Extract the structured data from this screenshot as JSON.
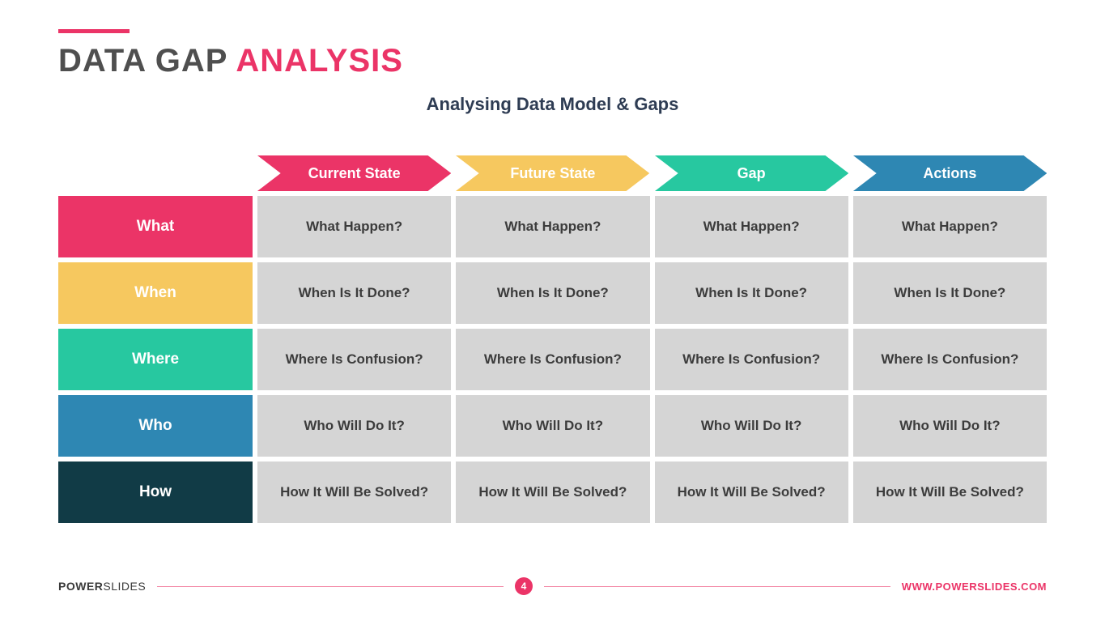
{
  "colors": {
    "accent_pink": "#eb3467",
    "title_gray": "#4f4f4f",
    "subtitle_navy": "#2e3c53",
    "cell_bg": "#d5d5d5",
    "cell_text": "#3c3c3c",
    "footer_dark": "#3a3a3a"
  },
  "title": {
    "part1": "DATA GAP ",
    "part2": "ANALYSIS"
  },
  "subtitle": "Analysing Data Model & Gaps",
  "columns": [
    {
      "label": "Current State",
      "color": "#eb3467"
    },
    {
      "label": "Future State",
      "color": "#f6c85f"
    },
    {
      "label": "Gap",
      "color": "#27c8a0"
    },
    {
      "label": "Actions",
      "color": "#2e87b3"
    }
  ],
  "rows": [
    {
      "label": "What",
      "color": "#eb3467",
      "cells": [
        "What Happen?",
        "What Happen?",
        "What Happen?",
        "What Happen?"
      ]
    },
    {
      "label": "When",
      "color": "#f6c85f",
      "cells": [
        "When Is It Done?",
        "When Is It Done?",
        "When Is It Done?",
        "When Is It Done?"
      ]
    },
    {
      "label": "Where",
      "color": "#27c8a0",
      "cells": [
        "Where Is Confusion?",
        "Where Is Confusion?",
        "Where Is Confusion?",
        "Where Is Confusion?"
      ]
    },
    {
      "label": "Who",
      "color": "#2e87b3",
      "cells": [
        "Who Will Do It?",
        "Who Will Do It?",
        "Who Will Do It?",
        "Who Will Do It?"
      ]
    },
    {
      "label": "How",
      "color": "#113b46",
      "cells": [
        "How It Will Be Solved?",
        "How It Will Be Solved?",
        "How It Will Be Solved?",
        "How It Will Be Solved?"
      ]
    }
  ],
  "footer": {
    "brand_bold": "POWER",
    "brand_light": "SLIDES",
    "page_number": "4",
    "url": "WWW.POWERSLIDES.COM"
  }
}
